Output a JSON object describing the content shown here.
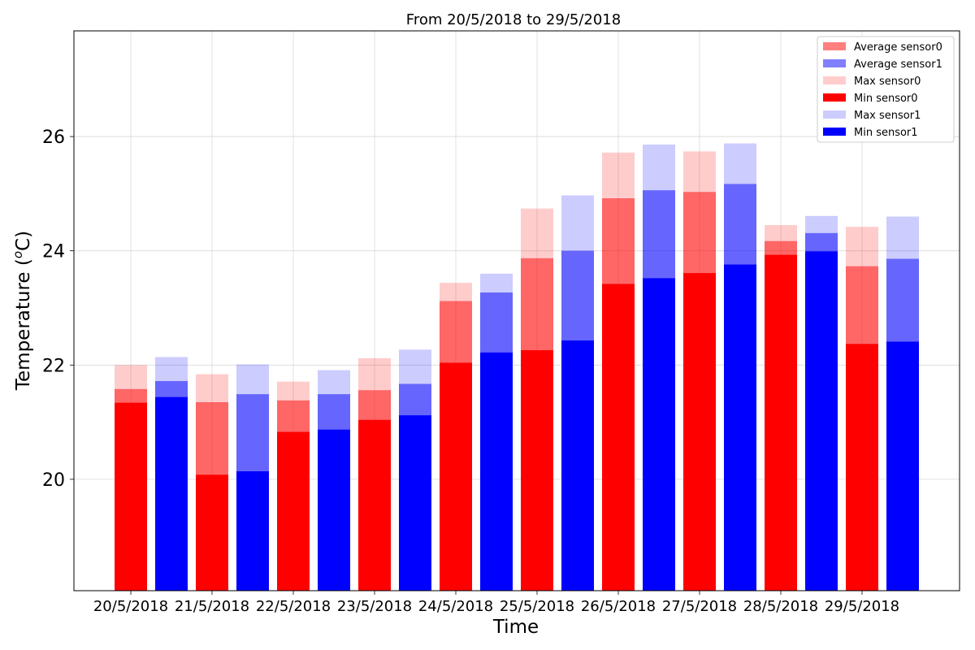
{
  "chart_data": {
    "type": "bar",
    "title": "From 20/5/2018  to 29/5/2018",
    "xlabel": "Time",
    "ylabel_main": "Temperature (",
    "ylabel_sup_o": "o",
    "ylabel_unit": "C)",
    "ylim": [
      18.05,
      27.85
    ],
    "yticks": [
      20,
      22,
      24,
      26
    ],
    "grid": true,
    "legend_position": "top-right",
    "dates": [
      "20/5/2018",
      "21/5/2018",
      "22/5/2018",
      "23/5/2018",
      "24/5/2018",
      "25/5/2018",
      "26/5/2018",
      "27/5/2018",
      "28/5/2018",
      "29/5/2018"
    ],
    "series": [
      {
        "name": "Average sensor0",
        "sensor": 0,
        "kind": "avg",
        "color": "#ff0000",
        "opacity": 0.5,
        "values": [
          21.58,
          21.35,
          21.38,
          21.56,
          23.12,
          23.87,
          24.92,
          25.03,
          24.17,
          23.73
        ]
      },
      {
        "name": "Average sensor1",
        "sensor": 1,
        "kind": "avg",
        "color": "#0000ff",
        "opacity": 0.5,
        "values": [
          21.72,
          21.49,
          21.49,
          21.67,
          23.27,
          24.0,
          25.06,
          25.17,
          24.31,
          23.86
        ]
      },
      {
        "name": "Max sensor0",
        "sensor": 0,
        "kind": "max",
        "color": "#ff0000",
        "opacity": 0.2,
        "values": [
          22.0,
          21.84,
          21.71,
          22.12,
          23.44,
          24.74,
          25.72,
          25.74,
          24.45,
          24.42
        ]
      },
      {
        "name": "Min sensor0",
        "sensor": 0,
        "kind": "min",
        "color": "#ff0000",
        "opacity": 1,
        "values": [
          21.34,
          20.08,
          20.83,
          21.04,
          22.04,
          22.26,
          23.42,
          23.61,
          23.93,
          22.37
        ]
      },
      {
        "name": "Max sensor1",
        "sensor": 1,
        "kind": "max",
        "color": "#0000ff",
        "opacity": 0.2,
        "values": [
          22.14,
          22.01,
          21.91,
          22.27,
          23.6,
          24.97,
          25.86,
          25.88,
          24.61,
          24.6
        ]
      },
      {
        "name": "Min sensor1",
        "sensor": 1,
        "kind": "min",
        "color": "#0000ff",
        "opacity": 1,
        "values": [
          21.44,
          20.14,
          20.87,
          21.12,
          22.22,
          22.43,
          23.52,
          23.76,
          23.99,
          22.41
        ]
      }
    ]
  }
}
